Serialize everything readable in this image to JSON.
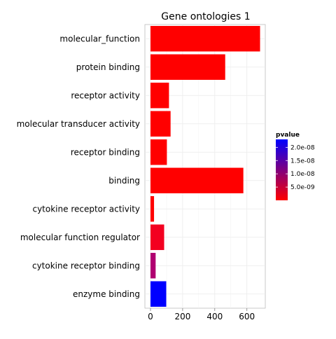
{
  "chart_data": {
    "type": "bar",
    "orientation": "horizontal",
    "title": "Gene ontologies 1",
    "xlabel": "",
    "ylabel": "",
    "xlim": [
      0,
      700
    ],
    "x_ticks": [
      "0",
      "200",
      "400",
      "600"
    ],
    "grid": true,
    "categories": [
      "molecular_function",
      "protein binding",
      "receptor activity",
      "molecular transducer activity",
      "receptor binding",
      "binding",
      "cytokine receptor activity",
      "molecular function regulator",
      "cytokine receptor binding",
      "enzyme binding"
    ],
    "values": [
      682,
      465,
      115,
      125,
      102,
      578,
      22,
      85,
      32,
      98
    ],
    "pvalues": [
      1e-12,
      1e-12,
      1e-12,
      1e-12,
      1e-12,
      1e-12,
      1e-12,
      2e-09,
      1.6e-08,
      2.3e-08
    ],
    "colors": [
      "#FF0000",
      "#FF0000",
      "#FF0000",
      "#FF0000",
      "#FF0000",
      "#FF0000",
      "#FF0000",
      "#F30020",
      "#B00070",
      "#0000FF"
    ],
    "legend": {
      "title": "pvalue",
      "position": "right",
      "labels": [
        "2.0e-08",
        "1.5e-08",
        "1.0e-08",
        "5.0e-09"
      ],
      "label_values": [
        2e-08,
        1.5e-08,
        1e-08,
        5e-09
      ],
      "range": [
        1e-12,
        2.3e-08
      ],
      "color_low": "#FF0000",
      "color_high": "#0000FF"
    }
  }
}
